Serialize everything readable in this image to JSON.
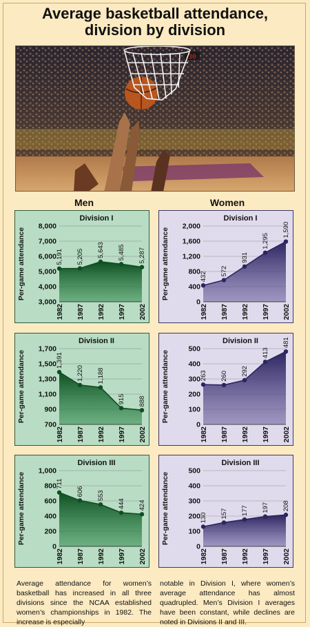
{
  "title_line1": "Average basketball attendance,",
  "title_line2": "division by division",
  "column_headers": {
    "men": "Men",
    "women": "Women"
  },
  "colors": {
    "men_fill": "#2e8a4a",
    "men_dark": "#0f4f22",
    "men_bg": "#b9dcc5",
    "women_fill": "#6a5f9c",
    "women_dark": "#2c2560",
    "women_bg": "#e0dbec",
    "page_bg": "#fbeac2"
  },
  "caption_left": "Average attendance for women’s basketball has increased in all three divisions since the NCAA established women’s championships in 1982. The increase is especially",
  "caption_right": "notable in Division I, where women’s average attendance has almost quadrupled. Men’s Division I averages have been constant, while declines are noted in Divisions II and III.",
  "chart_data": [
    {
      "type": "area",
      "group": "men",
      "title": "Division I",
      "ylabel": "Per-game attendance",
      "x": [
        "1982",
        "1987",
        "1992",
        "1997",
        "2002"
      ],
      "values": [
        5191,
        5205,
        5643,
        5485,
        5287
      ],
      "labels": [
        "5,191",
        "5,205",
        "5,643",
        "5,485",
        "5,287"
      ],
      "ylim": [
        3000,
        8000
      ],
      "yticks": [
        "3,000",
        "4,000",
        "5,000",
        "6,000",
        "7,000",
        "8,000"
      ],
      "ytick_values": [
        3000,
        4000,
        5000,
        6000,
        7000,
        8000
      ]
    },
    {
      "type": "area",
      "group": "women",
      "title": "Division I",
      "ylabel": "Per-game attendance",
      "x": [
        "1982",
        "1987",
        "1992",
        "1997",
        "2002"
      ],
      "values": [
        432,
        572,
        931,
        1295,
        1590
      ],
      "labels": [
        "432",
        "572",
        "931",
        "1,295",
        "1,590"
      ],
      "ylim": [
        0,
        2000
      ],
      "yticks": [
        "0",
        "400",
        "800",
        "1,200",
        "1,600",
        "2,000"
      ],
      "ytick_values": [
        0,
        400,
        800,
        1200,
        1600,
        2000
      ]
    },
    {
      "type": "area",
      "group": "men",
      "title": "Division II",
      "ylabel": "Per-game attendance",
      "x": [
        "1982",
        "1987",
        "1992",
        "1997",
        "2002"
      ],
      "values": [
        1391,
        1220,
        1188,
        915,
        888
      ],
      "labels": [
        "1,391",
        "1,220",
        "1,188",
        "915",
        "888"
      ],
      "ylim": [
        700,
        1700
      ],
      "yticks": [
        "700",
        "900",
        "1,100",
        "1,300",
        "1,500",
        "1,700"
      ],
      "ytick_values": [
        700,
        900,
        1100,
        1300,
        1500,
        1700
      ]
    },
    {
      "type": "area",
      "group": "women",
      "title": "Division II",
      "ylabel": "Per-game attendance",
      "x": [
        "1982",
        "1987",
        "1992",
        "1997",
        "2002"
      ],
      "values": [
        263,
        260,
        292,
        413,
        481
      ],
      "labels": [
        "263",
        "260",
        "292",
        "413",
        "481"
      ],
      "ylim": [
        0,
        500
      ],
      "yticks": [
        "0",
        "100",
        "200",
        "300",
        "400",
        "500"
      ],
      "ytick_values": [
        0,
        100,
        200,
        300,
        400,
        500
      ]
    },
    {
      "type": "area",
      "group": "men",
      "title": "Division III",
      "ylabel": "Per-game attendance",
      "x": [
        "1982",
        "1987",
        "1992",
        "1997",
        "2002"
      ],
      "values": [
        711,
        606,
        553,
        444,
        424
      ],
      "labels": [
        "711",
        "606",
        "553",
        "444",
        "424"
      ],
      "ylim": [
        0,
        1000
      ],
      "yticks": [
        "0",
        "200",
        "400",
        "600",
        "800",
        "1,000"
      ],
      "ytick_values": [
        0,
        200,
        400,
        600,
        800,
        1000
      ]
    },
    {
      "type": "area",
      "group": "women",
      "title": "Division III",
      "ylabel": "Per-game attendance",
      "x": [
        "1982",
        "1987",
        "1992",
        "1997",
        "2002"
      ],
      "values": [
        130,
        157,
        177,
        197,
        208
      ],
      "labels": [
        "130",
        "157",
        "177",
        "197",
        "208"
      ],
      "ylim": [
        0,
        500
      ],
      "yticks": [
        "0",
        "100",
        "200",
        "300",
        "400",
        "500"
      ],
      "ytick_values": [
        0,
        100,
        200,
        300,
        400,
        500
      ]
    }
  ]
}
